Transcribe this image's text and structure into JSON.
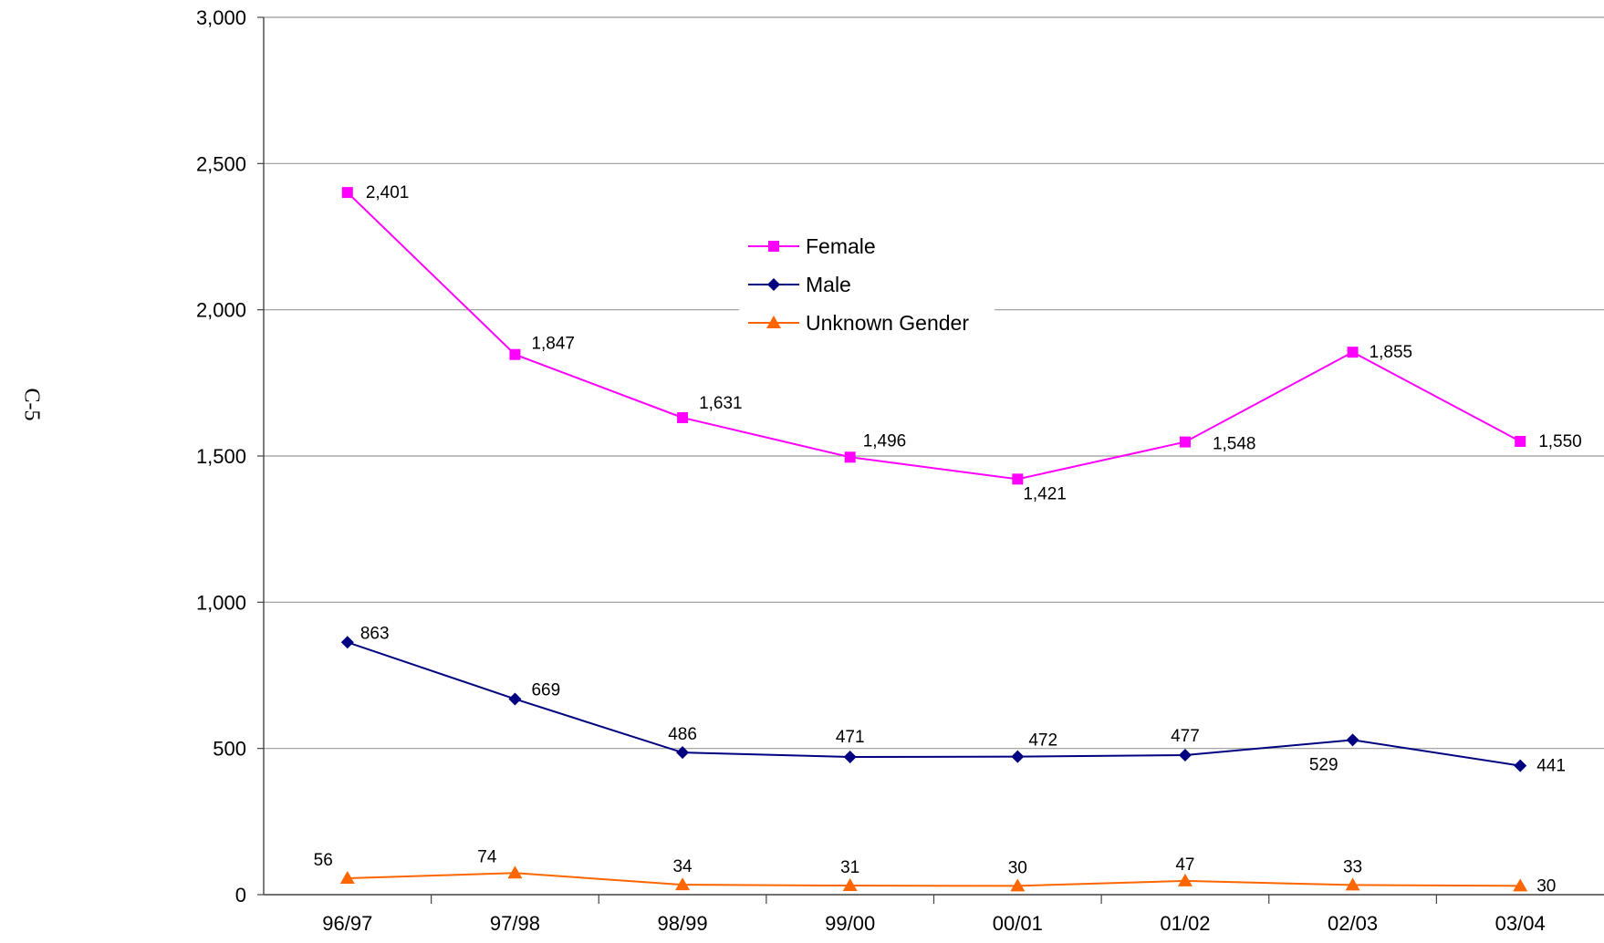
{
  "page_label": "C-5",
  "chart_data": {
    "type": "line",
    "title": "",
    "xlabel": "",
    "ylabel": "",
    "categories": [
      "96/97",
      "97/98",
      "98/99",
      "99/00",
      "00/01",
      "01/02",
      "02/03",
      "03/04"
    ],
    "ylim": [
      0,
      3000
    ],
    "yticks": [
      0,
      500,
      1000,
      1500,
      2000,
      2500,
      3000
    ],
    "ytick_labels": [
      "0",
      "500",
      "1,000",
      "1,500",
      "2,000",
      "2,500",
      "3,000"
    ],
    "grid": "horizontal",
    "legend_position": "upper-center",
    "series": [
      {
        "name": "Female",
        "color": "#FF00FF",
        "marker": "square",
        "values": [
          2401,
          1847,
          1631,
          1496,
          1421,
          1548,
          1855,
          1550
        ],
        "labels": [
          "2,401",
          "1,847",
          "1,631",
          "1,496",
          "1,421",
          "1,548",
          "1,855",
          "1,550"
        ]
      },
      {
        "name": "Male",
        "color": "#000080",
        "marker": "diamond",
        "values": [
          863,
          669,
          486,
          471,
          472,
          477,
          529,
          441
        ],
        "labels": [
          "863",
          "669",
          "486",
          "471",
          "472",
          "477",
          "529",
          "441"
        ]
      },
      {
        "name": "Unknown Gender",
        "color": "#FF6600",
        "marker": "triangle",
        "values": [
          56,
          74,
          34,
          31,
          30,
          47,
          33,
          30
        ],
        "labels": [
          "56",
          "74",
          "34",
          "31",
          "30",
          "47",
          "33",
          "30"
        ]
      }
    ]
  }
}
